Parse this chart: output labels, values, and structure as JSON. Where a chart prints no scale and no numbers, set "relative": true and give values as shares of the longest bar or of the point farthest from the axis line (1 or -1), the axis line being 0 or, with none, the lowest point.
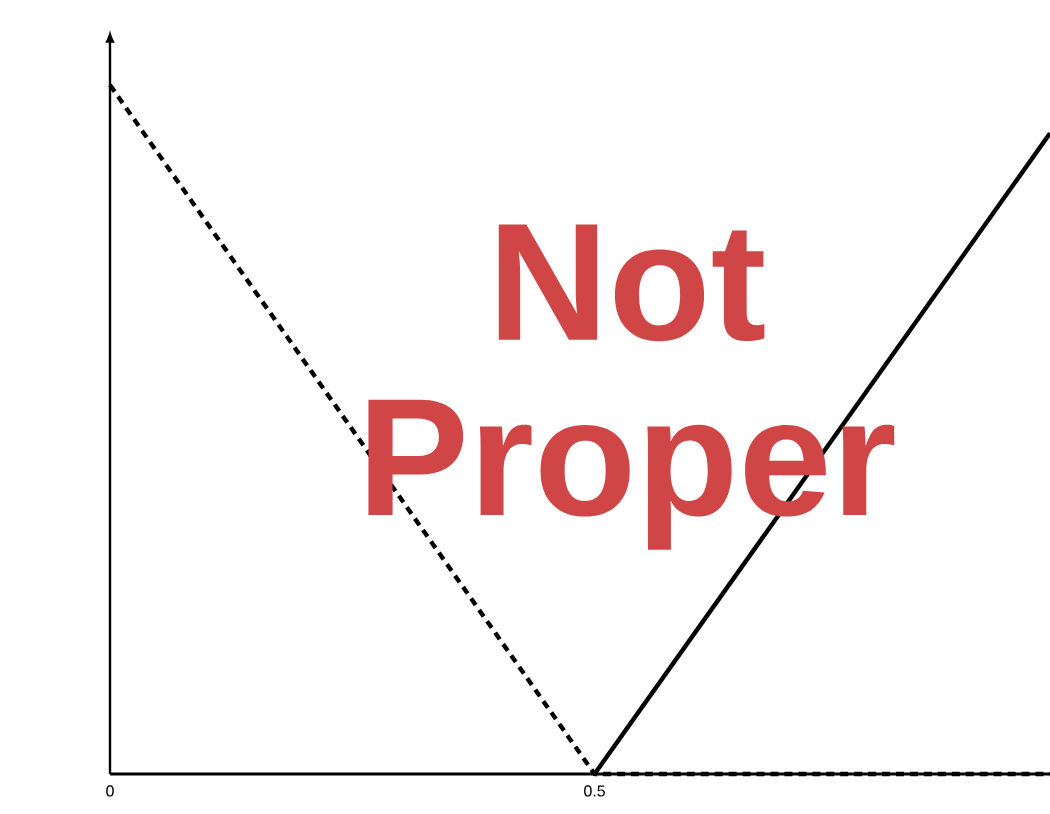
{
  "chart_data": {
    "type": "line",
    "relative": true,
    "xlim": [
      0,
      0.97
    ],
    "xticks": [
      0,
      0.5
    ],
    "tick_labels": "x",
    "annotations": [
      "Not Proper"
    ],
    "series": [
      {
        "x": [
          0,
          0.5,
          0.97
        ],
        "values": [
          1,
          0,
          0
        ],
        "color": "#000000",
        "line_style": "dashed"
      },
      {
        "x": [
          0.5,
          0.97
        ],
        "values": [
          0,
          0.93
        ],
        "color": "#000000",
        "line_style": "solid"
      }
    ]
  }
}
